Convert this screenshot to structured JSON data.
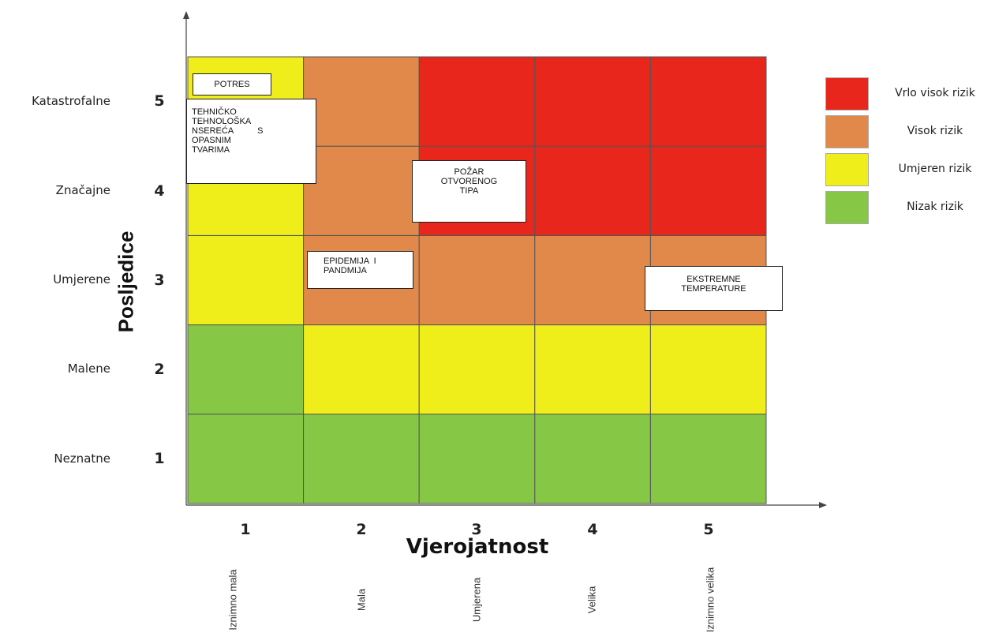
{
  "chart_data": {
    "type": "heatmap",
    "title": "",
    "xlabel": "Vjerojatnost",
    "ylabel": "Posljedice",
    "x_ticks": [
      "1",
      "2",
      "3",
      "4",
      "5"
    ],
    "x_categories": [
      "Iznimno mala",
      "Mala",
      "Umjerena",
      "Velika",
      "Iznimno velika"
    ],
    "y_ticks": [
      "1",
      "2",
      "3",
      "4",
      "5"
    ],
    "y_categories": [
      "Neznatne",
      "Malene",
      "Umjerene",
      "Značajne",
      "Katastrofalne"
    ],
    "risk_levels": [
      {
        "name": "Vrlo visok rizik",
        "color": "#e8261c"
      },
      {
        "name": "Visok rizik",
        "color": "#e0894a"
      },
      {
        "name": "Umjeren rizik",
        "color": "#f0ee1a"
      },
      {
        "name": "Nizak rizik",
        "color": "#86c846"
      }
    ],
    "matrix_rows_bottom_to_top": [
      [
        3,
        3,
        3,
        3,
        3
      ],
      [
        3,
        2,
        2,
        2,
        2
      ],
      [
        2,
        1,
        1,
        1,
        1
      ],
      [
        2,
        1,
        0,
        0,
        0
      ],
      [
        2,
        1,
        0,
        0,
        0
      ]
    ],
    "annotations": [
      {
        "lines": [
          "POTRES"
        ],
        "x": 1,
        "y": 5
      },
      {
        "lines": [
          "TEHNIČKO",
          "TEHNOLOŠKA",
          "NSEREĆA          S",
          "OPASNIM",
          "TVARIMA"
        ],
        "x": 1,
        "y": 5
      },
      {
        "lines": [
          "POŽAR",
          "OTVORENOG",
          "TIPA"
        ],
        "x": 3,
        "y": 4
      },
      {
        "lines": [
          "EPIDEMIJA  I",
          "PANDMIJA"
        ],
        "x": 2,
        "y": 3
      },
      {
        "lines": [
          "EKSTREMNE",
          "TEMPERATURE"
        ],
        "x": 5,
        "y": 3
      }
    ],
    "legend": "right",
    "grid": true
  }
}
